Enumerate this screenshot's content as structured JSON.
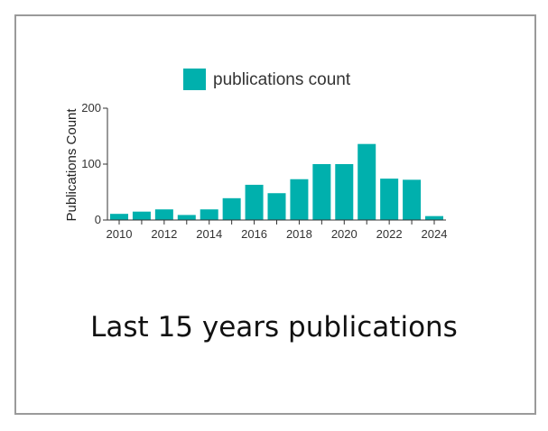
{
  "caption": "Last 15 years publications",
  "colors": {
    "bar": "#00b0ad",
    "axis": "#333333",
    "border": "#9a9a9a"
  },
  "chart_data": {
    "type": "bar",
    "x": [
      2010,
      2011,
      2012,
      2013,
      2014,
      2015,
      2016,
      2017,
      2018,
      2019,
      2020,
      2021,
      2022,
      2023,
      2024
    ],
    "series": [
      {
        "name": "publications count",
        "values": [
          11,
          15,
          19,
          9,
          19,
          39,
          63,
          48,
          73,
          100,
          100,
          136,
          74,
          72,
          7
        ]
      }
    ],
    "x_tick_labels": [
      "2010",
      "2012",
      "2014",
      "2016",
      "2018",
      "2020",
      "2022",
      "2024"
    ],
    "y_ticks": [
      0,
      100,
      200
    ],
    "ylim": [
      0,
      200
    ],
    "ylabel": "Publications Count",
    "xlabel": "",
    "legend_placement": "top-center",
    "grid": false
  }
}
